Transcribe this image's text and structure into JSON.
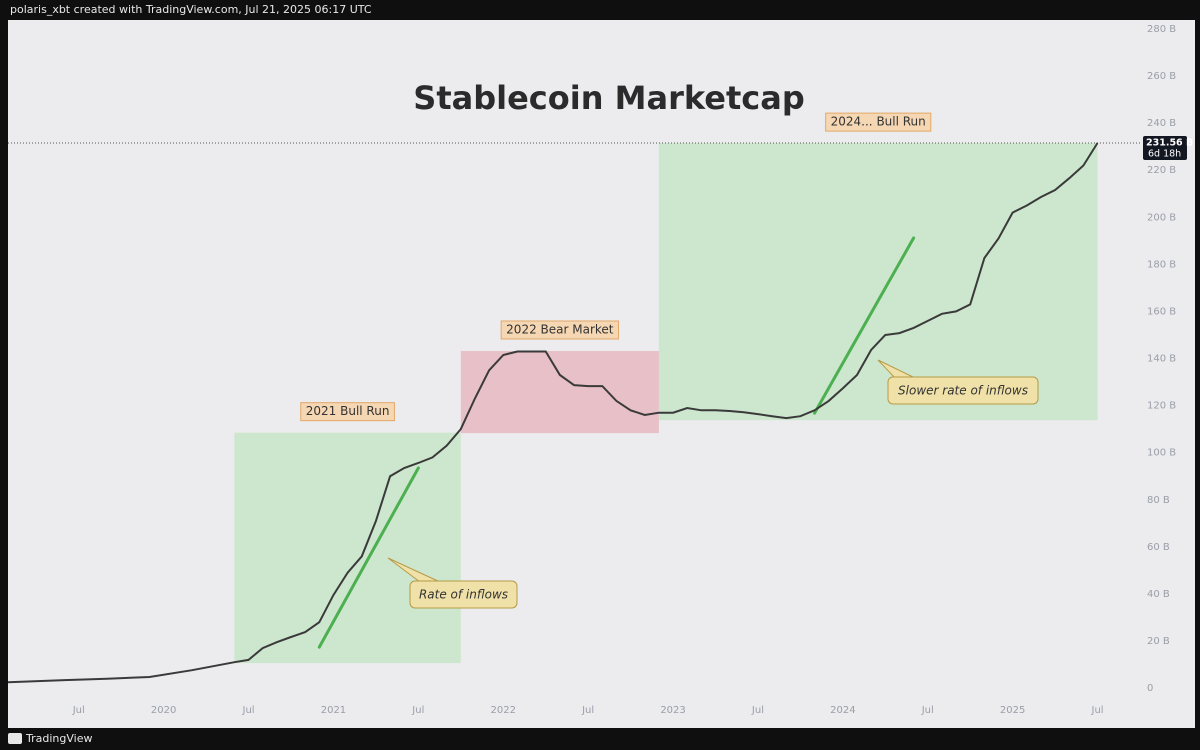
{
  "header": "polaris_xbt created with TradingView.com, Jul 21, 2025 06:17 UTC",
  "footer": "TradingView",
  "chart_data": {
    "type": "line",
    "title": "Stablecoin Marketcap",
    "x": [
      "2019-02",
      "2019-06",
      "2019-09",
      "2019-12",
      "2020-03",
      "2020-06",
      "2020-07",
      "2020-08",
      "2020-09",
      "2020-10",
      "2020-11",
      "2020-12",
      "2021-01",
      "2021-02",
      "2021-03",
      "2021-04",
      "2021-05",
      "2021-06",
      "2021-07",
      "2021-08",
      "2021-09",
      "2021-10",
      "2021-11",
      "2021-12",
      "2022-01",
      "2022-02",
      "2022-03",
      "2022-04",
      "2022-05",
      "2022-06",
      "2022-07",
      "2022-08",
      "2022-09",
      "2022-10",
      "2022-11",
      "2022-12",
      "2023-01",
      "2023-02",
      "2023-03",
      "2023-04",
      "2023-05",
      "2023-06",
      "2023-07",
      "2023-08",
      "2023-09",
      "2023-10",
      "2023-11",
      "2023-12",
      "2024-01",
      "2024-02",
      "2024-03",
      "2024-04",
      "2024-05",
      "2024-06",
      "2024-07",
      "2024-08",
      "2024-09",
      "2024-10",
      "2024-11",
      "2024-12",
      "2025-01",
      "2025-02",
      "2025-03",
      "2025-04",
      "2025-05",
      "2025-06",
      "2025-07"
    ],
    "series": [
      {
        "name": "Stablecoin Marketcap",
        "color": "#3a3a3a",
        "values": [
          2.5,
          3.4,
          4,
          4.7,
          7.6,
          11,
          12,
          17,
          19.5,
          21.7,
          23.8,
          28,
          39.5,
          49,
          56,
          71,
          90,
          93.5,
          95.6,
          98,
          103,
          110,
          123,
          135,
          141.5,
          143,
          143,
          143,
          133,
          128.7,
          128.3,
          128.3,
          122,
          118,
          116,
          117,
          117,
          119,
          118,
          118,
          117.7,
          117.2,
          116.4,
          115.5,
          114.7,
          115.5,
          118,
          122,
          127.4,
          133,
          143.6,
          150,
          150.8,
          153,
          156,
          159,
          160,
          163,
          182.7,
          191,
          202,
          205,
          208.6,
          211.6,
          216.6,
          222,
          231.56
        ]
      }
    ],
    "last_price": {
      "value": 231.56,
      "label": "231.56 B"
    },
    "countdown": "6d 18h",
    "xlim": [
      "2019-02",
      "2025-10"
    ],
    "ylim": [
      -14.4,
      283.8
    ],
    "yticks": [
      0,
      {
        "value": 20,
        "label": "20 B"
      },
      {
        "value": 40,
        "label": "40 B"
      },
      {
        "value": 60,
        "label": "60 B"
      },
      {
        "value": 80,
        "label": "80 B"
      },
      {
        "value": 100,
        "label": "100 B"
      },
      {
        "value": 120,
        "label": "120 B"
      },
      {
        "value": 140,
        "label": "140 B"
      },
      {
        "value": 160,
        "label": "160 B"
      },
      {
        "value": 180,
        "label": "180 B"
      },
      {
        "value": 200,
        "label": "200 B"
      },
      {
        "value": 220,
        "label": "220 B"
      },
      {
        "value": 240,
        "label": "240 B"
      },
      {
        "value": 260,
        "label": "260 B"
      },
      {
        "value": 280,
        "label": "280 B"
      }
    ],
    "xticks": [
      {
        "value": "2019-07",
        "label": "Jul"
      },
      {
        "value": "2020-01",
        "label": "2020"
      },
      {
        "value": "2020-07",
        "label": "Jul"
      },
      {
        "value": "2021-01",
        "label": "2021"
      },
      {
        "value": "2021-07",
        "label": "Jul"
      },
      {
        "value": "2022-01",
        "label": "2022"
      },
      {
        "value": "2022-07",
        "label": "Jul"
      },
      {
        "value": "2023-01",
        "label": "2023"
      },
      {
        "value": "2023-07",
        "label": "Jul"
      },
      {
        "value": "2024-01",
        "label": "2024"
      },
      {
        "value": "2024-07",
        "label": "Jul"
      },
      {
        "value": "2025-01",
        "label": "2025"
      },
      {
        "value": "2025-07",
        "label": "Jul"
      }
    ],
    "regions": [
      {
        "label": "2021 Bull Run",
        "color": "#c8e6c9",
        "x": [
          "2020-06",
          "2021-10"
        ],
        "y": [
          10.6,
          108.5
        ]
      },
      {
        "label": "2022 Bear Market",
        "color": "#e8b9bf",
        "x": [
          "2021-10",
          "2022-12"
        ],
        "y": [
          108.3,
          143.2
        ]
      },
      {
        "label": "2024... Bull Run",
        "color": "#c8e6c9",
        "x": [
          "2022-12",
          "2025-07"
        ],
        "y": [
          113.8,
          231.5
        ]
      }
    ],
    "trend_lines": [
      {
        "color": "#4caf50",
        "x": [
          "2020-12",
          "2021-07"
        ],
        "y": [
          17.4,
          93.5
        ]
      },
      {
        "color": "#4caf50",
        "x": [
          "2023-11",
          "2024-06"
        ],
        "y": [
          116.8,
          191.2
        ]
      }
    ],
    "annotations": [
      "Rate of inflows",
      "Slower rate of inflows"
    ]
  }
}
